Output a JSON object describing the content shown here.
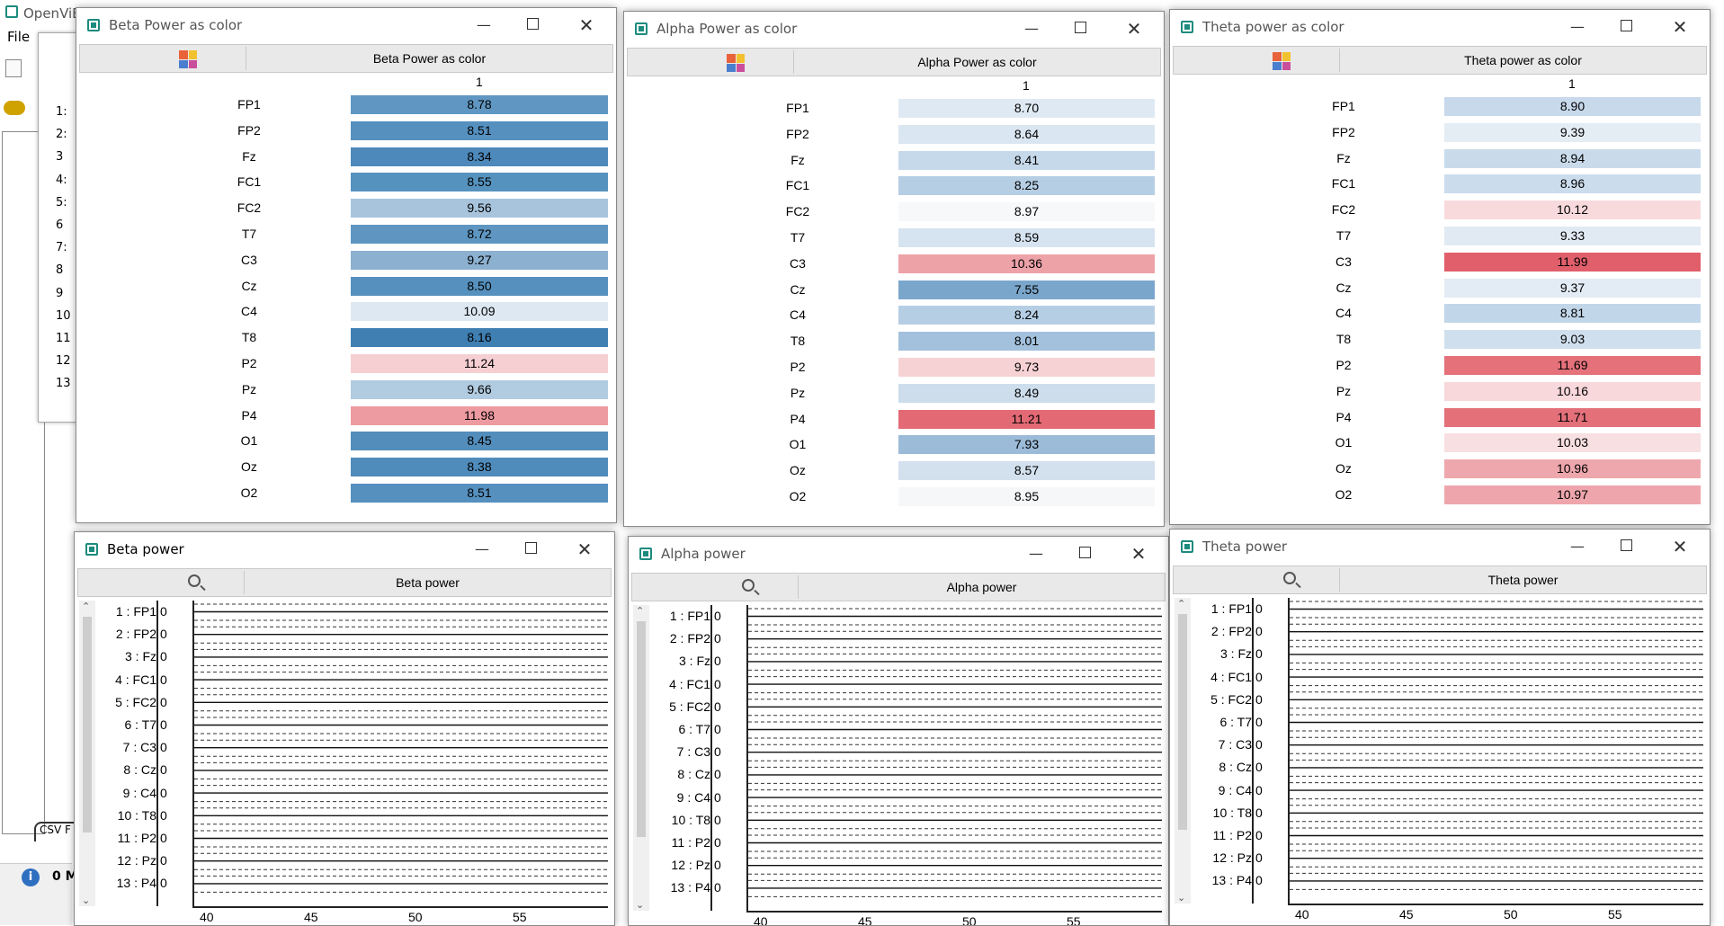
{
  "background_app": {
    "title": "OpenViB",
    "menu_file": "File",
    "row_numbers": [
      "1:",
      "2:",
      "3",
      "4:",
      "5:",
      "6",
      "7:",
      "8",
      "9",
      "10",
      "11",
      "12",
      "13"
    ],
    "status_count": "0 M",
    "tab_label": "CSV F"
  },
  "windows": {
    "beta_color": {
      "title": "Beta Power as color",
      "toolbar_title": "Beta Power as color",
      "column_header": "1",
      "rows": [
        {
          "label": "FP1",
          "value": "8.78",
          "color": "#5f97c2"
        },
        {
          "label": "FP2",
          "value": "8.51",
          "color": "#5590bf"
        },
        {
          "label": "Fz",
          "value": "8.34",
          "color": "#4d89ba"
        },
        {
          "label": "FC1",
          "value": "8.55",
          "color": "#5592be"
        },
        {
          "label": "FC2",
          "value": "9.56",
          "color": "#a7c4dc"
        },
        {
          "label": "T7",
          "value": "8.72",
          "color": "#5e96c1"
        },
        {
          "label": "C3",
          "value": "9.27",
          "color": "#8bb0d0"
        },
        {
          "label": "Cz",
          "value": "8.50",
          "color": "#5590be"
        },
        {
          "label": "C4",
          "value": "10.09",
          "color": "#dde8f2"
        },
        {
          "label": "T8",
          "value": "8.16",
          "color": "#3f7fb2"
        },
        {
          "label": "P2",
          "value": "11.24",
          "color": "#f6cfd2"
        },
        {
          "label": "Pz",
          "value": "9.66",
          "color": "#b1cbe0"
        },
        {
          "label": "P4",
          "value": "11.98",
          "color": "#ed9aa1"
        },
        {
          "label": "O1",
          "value": "8.45",
          "color": "#528dbc"
        },
        {
          "label": "Oz",
          "value": "8.38",
          "color": "#4f8bbb"
        },
        {
          "label": "O2",
          "value": "8.51",
          "color": "#5590bf"
        }
      ]
    },
    "alpha_color": {
      "title": "Alpha Power as color",
      "toolbar_title": "Alpha Power as color",
      "column_header": "1",
      "rows": [
        {
          "label": "FP1",
          "value": "8.70",
          "color": "#dfe9f3"
        },
        {
          "label": "FP2",
          "value": "8.64",
          "color": "#dae6f1"
        },
        {
          "label": "Fz",
          "value": "8.41",
          "color": "#c6d9ea"
        },
        {
          "label": "FC1",
          "value": "8.25",
          "color": "#b6cee4"
        },
        {
          "label": "FC2",
          "value": "8.97",
          "color": "#f7f8fa"
        },
        {
          "label": "T7",
          "value": "8.59",
          "color": "#d6e3f0"
        },
        {
          "label": "C3",
          "value": "10.36",
          "color": "#eda2a8"
        },
        {
          "label": "Cz",
          "value": "7.55",
          "color": "#7ba6cc"
        },
        {
          "label": "C4",
          "value": "8.24",
          "color": "#b6cee4"
        },
        {
          "label": "T8",
          "value": "8.01",
          "color": "#a3c1dc"
        },
        {
          "label": "P2",
          "value": "9.73",
          "color": "#f6d2d5"
        },
        {
          "label": "Pz",
          "value": "8.49",
          "color": "#cdddec"
        },
        {
          "label": "P4",
          "value": "11.21",
          "color": "#e36a75"
        },
        {
          "label": "O1",
          "value": "7.93",
          "color": "#9bbbd8"
        },
        {
          "label": "Oz",
          "value": "8.57",
          "color": "#d3e1ee"
        },
        {
          "label": "O2",
          "value": "8.95",
          "color": "#f6f7f9"
        }
      ]
    },
    "theta_color": {
      "title": "Theta power as color",
      "toolbar_title": "Theta power as color",
      "column_header": "1",
      "rows": [
        {
          "label": "FP1",
          "value": "8.90",
          "color": "#c7d9ea"
        },
        {
          "label": "FP2",
          "value": "9.39",
          "color": "#e4ecf4"
        },
        {
          "label": "Fz",
          "value": "8.94",
          "color": "#c9dbeb"
        },
        {
          "label": "FC1",
          "value": "8.96",
          "color": "#cbdcec"
        },
        {
          "label": "FC2",
          "value": "10.12",
          "color": "#f8dadd"
        },
        {
          "label": "T7",
          "value": "9.33",
          "color": "#e1eaf3"
        },
        {
          "label": "C3",
          "value": "11.99",
          "color": "#e05f6b"
        },
        {
          "label": "Cz",
          "value": "9.37",
          "color": "#e3ebf4"
        },
        {
          "label": "C4",
          "value": "8.81",
          "color": "#c2d6e9"
        },
        {
          "label": "T8",
          "value": "9.03",
          "color": "#cfdfed"
        },
        {
          "label": "P2",
          "value": "11.69",
          "color": "#e5717b"
        },
        {
          "label": "Pz",
          "value": "10.16",
          "color": "#f8d8db"
        },
        {
          "label": "P4",
          "value": "11.71",
          "color": "#e4707a"
        },
        {
          "label": "O1",
          "value": "10.03",
          "color": "#f8dfe1"
        },
        {
          "label": "Oz",
          "value": "10.96",
          "color": "#eea7ad"
        },
        {
          "label": "O2",
          "value": "10.97",
          "color": "#eea6ac"
        }
      ]
    },
    "beta_signal": {
      "title": "Beta power",
      "toolbar_title": "Beta power",
      "channels": [
        "1 : FP1",
        "2 : FP2",
        "3 : Fz",
        "4 : FC1",
        "5 : FC2",
        "6 : T7",
        "7 : C3",
        "8 : Cz",
        "9 : C4",
        "10 : T8",
        "11 : P2",
        "12 : Pz",
        "13 : P4"
      ],
      "zero_label": "0",
      "x_ticks": [
        "40",
        "45",
        "50",
        "55"
      ]
    },
    "alpha_signal": {
      "title": "Alpha power",
      "toolbar_title": "Alpha power",
      "channels": [
        "1 : FP1",
        "2 : FP2",
        "3 : Fz",
        "4 : FC1",
        "5 : FC2",
        "6 : T7",
        "7 : C3",
        "8 : Cz",
        "9 : C4",
        "10 : T8",
        "11 : P2",
        "12 : Pz",
        "13 : P4"
      ],
      "zero_label": "0",
      "x_ticks": [
        "40",
        "45",
        "50",
        "55"
      ]
    },
    "theta_signal": {
      "title": "Theta power",
      "toolbar_title": "Theta power",
      "channels": [
        "1 : FP1",
        "2 : FP2",
        "3 : Fz",
        "4 : FC1",
        "5 : FC2",
        "6 : T7",
        "7 : C3",
        "8 : Cz",
        "9 : C4",
        "10 : T8",
        "11 : P2",
        "12 : Pz",
        "13 : P4"
      ],
      "zero_label": "0",
      "x_ticks": [
        "40",
        "45",
        "50",
        "55"
      ]
    }
  },
  "palette_colors": [
    "#e8623a",
    "#f2c12e",
    "#4a7ecf",
    "#c94f9c"
  ],
  "icons": {
    "window_icon": "openvibe-window-icon",
    "palette": "palette-icon",
    "zoom": "magnifier-icon"
  }
}
